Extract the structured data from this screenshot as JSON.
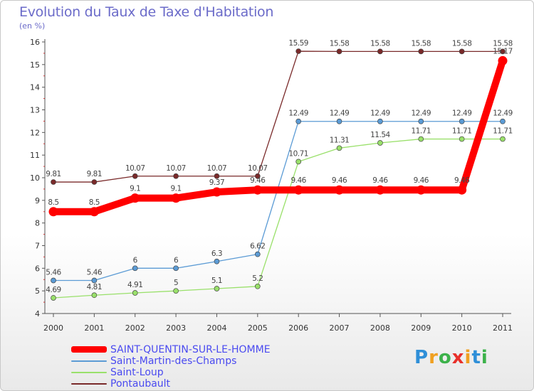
{
  "chart_data": {
    "type": "line",
    "title": "Evolution du Taux de Taxe d'Habitation",
    "subtitle": "(en %)",
    "x": [
      "2000",
      "2001",
      "2002",
      "2003",
      "2004",
      "2005",
      "2006",
      "2007",
      "2008",
      "2009",
      "2010",
      "2011"
    ],
    "ylim": [
      4,
      16
    ],
    "yticks": [
      "4",
      "5",
      "6",
      "7",
      "8",
      "9",
      "10",
      "11",
      "12",
      "13",
      "14",
      "15",
      "16"
    ],
    "grid": false,
    "legend_position": "bottom-left",
    "series": [
      {
        "name": "SAINT-QUENTIN-SUR-LE-HOMME",
        "color": "#ff0000",
        "values": [
          8.5,
          8.5,
          9.1,
          9.1,
          9.37,
          9.46,
          9.46,
          9.46,
          9.46,
          9.46,
          9.46,
          15.17
        ],
        "labels": [
          "8.5",
          "8.5",
          "9.1",
          "9.1",
          "9.37",
          "9.46",
          "9.46",
          "9.46",
          "9.46",
          "9.46",
          "9.46",
          "15.17"
        ]
      },
      {
        "name": "Saint-Martin-des-Champs",
        "color": "#5b9bd5",
        "values": [
          5.46,
          5.46,
          6,
          6,
          6.3,
          6.62,
          12.49,
          12.49,
          12.49,
          12.49,
          12.49,
          12.49
        ],
        "labels": [
          "5.46",
          "5.46",
          "6",
          "6",
          "6.3",
          "6.62",
          "12.49",
          "12.49",
          "12.49",
          "12.49",
          "12.49",
          "12.49"
        ]
      },
      {
        "name": "Saint-Loup",
        "color": "#99e06a",
        "values": [
          4.69,
          4.81,
          4.91,
          5,
          5.1,
          5.2,
          10.71,
          11.31,
          11.54,
          11.71,
          11.71,
          11.71
        ],
        "labels": [
          "4.69",
          "4.81",
          "4.91",
          "5",
          "5.1",
          "5.2",
          "10.71",
          "11.31",
          "11.54",
          "11.71",
          "11.71",
          "11.71"
        ]
      },
      {
        "name": "Pontaubault",
        "color": "#7a2a2a",
        "values": [
          9.81,
          9.81,
          10.07,
          10.07,
          10.07,
          10.07,
          15.59,
          15.58,
          15.58,
          15.58,
          15.58,
          15.58
        ],
        "labels": [
          "9.81",
          "9.81",
          "10.07",
          "10.07",
          "10.07",
          "10.07",
          "15.59",
          "15.58",
          "15.58",
          "15.58",
          "15.58",
          "15.58"
        ]
      }
    ]
  },
  "logo": {
    "letters": [
      "P",
      "r",
      "o",
      "x",
      "i",
      "t",
      "i"
    ],
    "colors": [
      "#2f8fd8",
      "#f0a020",
      "#3cb24a",
      "#e8302a",
      "#f0a020",
      "#2f8fd8",
      "#3cb24a"
    ]
  }
}
